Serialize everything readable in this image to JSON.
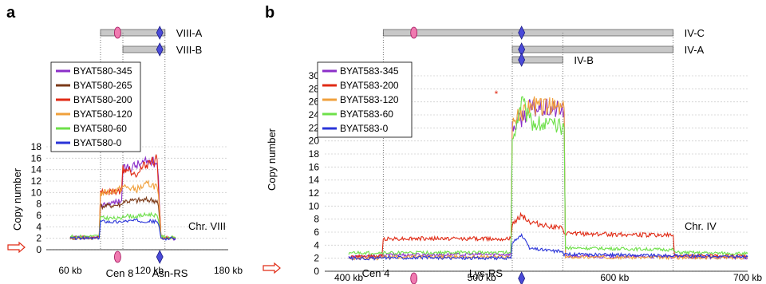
{
  "chart_data": [
    {
      "panel_label": "a",
      "type": "line",
      "ylabel": "Copy number",
      "ylim": [
        0,
        18
      ],
      "yticks": [
        "0",
        "2",
        "4",
        "6",
        "8",
        "10",
        "12",
        "14",
        "16",
        "18"
      ],
      "xlim": [
        60,
        180
      ],
      "xticks": [
        "60 kb",
        "120 kb",
        "180 kb"
      ],
      "chromosome_label": "Chr. VIII",
      "marker_labels": [
        {
          "text": "Cen 8",
          "color": "#d6187c"
        },
        {
          "text": "Asn-RS",
          "color": "#2a2ad4"
        }
      ],
      "bars": [
        {
          "label": "VIII-A",
          "start": 83,
          "end": 132
        },
        {
          "label": "VIII-B",
          "start": 100,
          "end": 132
        }
      ],
      "centromere_kb": 96,
      "gene_kb": 128,
      "series": [
        {
          "name": "BYAT580-345",
          "color": "#8b2fc9",
          "values": [
            [
              60,
              2.2
            ],
            [
              82,
              2.1
            ],
            [
              83,
              7.8
            ],
            [
              99,
              8.6
            ],
            [
              100,
              14.0
            ],
            [
              110,
              14.8
            ],
            [
              120,
              15.5
            ],
            [
              126,
              15.2
            ],
            [
              127,
              12.0
            ],
            [
              129,
              2.1
            ],
            [
              140,
              1.9
            ]
          ]
        },
        {
          "name": "BYAT580-265",
          "color": "#7b3a18",
          "values": [
            [
              60,
              2.0
            ],
            [
              82,
              2.1
            ],
            [
              83,
              7.6
            ],
            [
              99,
              7.9
            ],
            [
              100,
              8.5
            ],
            [
              110,
              8.6
            ],
            [
              120,
              8.7
            ],
            [
              126,
              8.6
            ],
            [
              127,
              7.5
            ],
            [
              129,
              2.0
            ],
            [
              140,
              2.0
            ]
          ]
        },
        {
          "name": "BYAT580-200",
          "color": "#e02a14",
          "values": [
            [
              60,
              2.2
            ],
            [
              82,
              2.2
            ],
            [
              83,
              10.0
            ],
            [
              99,
              10.3
            ],
            [
              100,
              14.2
            ],
            [
              110,
              13.5
            ],
            [
              120,
              15.3
            ],
            [
              126,
              15.8
            ],
            [
              127,
              11.0
            ],
            [
              129,
              2.2
            ],
            [
              140,
              2.0
            ]
          ]
        },
        {
          "name": "BYAT580-120",
          "color": "#f0a03c",
          "values": [
            [
              60,
              2.1
            ],
            [
              82,
              2.2
            ],
            [
              83,
              9.8
            ],
            [
              99,
              10.6
            ],
            [
              100,
              11.0
            ],
            [
              110,
              10.5
            ],
            [
              120,
              11.5
            ],
            [
              126,
              11.0
            ],
            [
              127,
              9.0
            ],
            [
              129,
              2.1
            ],
            [
              140,
              2.0
            ]
          ]
        },
        {
          "name": "BYAT580-60",
          "color": "#6ee04a",
          "values": [
            [
              60,
              2.3
            ],
            [
              82,
              2.4
            ],
            [
              83,
              5.6
            ],
            [
              99,
              5.4
            ],
            [
              100,
              6.0
            ],
            [
              110,
              5.8
            ],
            [
              120,
              6.2
            ],
            [
              126,
              6.0
            ],
            [
              127,
              5.0
            ],
            [
              129,
              2.3
            ],
            [
              140,
              2.1
            ]
          ]
        },
        {
          "name": "BYAT580-0",
          "color": "#2a34d8",
          "values": [
            [
              60,
              2.0
            ],
            [
              82,
              2.0
            ],
            [
              83,
              5.0
            ],
            [
              99,
              4.8
            ],
            [
              100,
              5.0
            ],
            [
              110,
              5.1
            ],
            [
              120,
              5.0
            ],
            [
              126,
              4.9
            ],
            [
              127,
              4.5
            ],
            [
              129,
              1.9
            ],
            [
              140,
              2.0
            ]
          ]
        }
      ]
    },
    {
      "panel_label": "b",
      "type": "line",
      "ylabel": "Copy number",
      "ylim": [
        0,
        30
      ],
      "yticks": [
        "0",
        "2",
        "4",
        "6",
        "8",
        "10",
        "12",
        "14",
        "16",
        "18",
        "20",
        "22",
        "24",
        "26",
        "28",
        "30"
      ],
      "xlim": [
        400,
        700
      ],
      "xticks": [
        "400 kb",
        "500 kb",
        "600 kb",
        "700 kb"
      ],
      "chromosome_label": "Chr. IV",
      "marker_labels": [
        {
          "text": "Cen 4",
          "color": "#d6187c"
        },
        {
          "text": "Lys-RS",
          "color": "#2a2ad4"
        }
      ],
      "bars": [
        {
          "label": "IV-C",
          "start": 426,
          "end": 644
        },
        {
          "label": "IV-A",
          "start": 523,
          "end": 644
        },
        {
          "label": "IV-B",
          "start": 523,
          "end": 561
        }
      ],
      "centromere_kb": 449,
      "gene_kb": 530,
      "annotation": "*",
      "series": [
        {
          "name": "BYAT583-345",
          "color": "#8b2fc9",
          "values": [
            [
              400,
              2.2
            ],
            [
              425,
              2.3
            ],
            [
              426,
              2.5
            ],
            [
              522,
              2.6
            ],
            [
              523,
              22.0
            ],
            [
              530,
              23.5
            ],
            [
              536,
              25.0
            ],
            [
              562,
              24.8
            ],
            [
              563,
              2.3
            ],
            [
              644,
              2.2
            ],
            [
              700,
              2.1
            ]
          ]
        },
        {
          "name": "BYAT583-200",
          "color": "#e02a14",
          "values": [
            [
              400,
              2.2
            ],
            [
              425,
              2.3
            ],
            [
              426,
              5.0
            ],
            [
              522,
              5.0
            ],
            [
              523,
              7.0
            ],
            [
              530,
              8.8
            ],
            [
              536,
              7.5
            ],
            [
              561,
              6.5
            ],
            [
              562,
              5.8
            ],
            [
              644,
              5.5
            ],
            [
              645,
              2.4
            ],
            [
              700,
              2.3
            ]
          ]
        },
        {
          "name": "BYAT583-120",
          "color": "#f0a03c",
          "values": [
            [
              400,
              2.0
            ],
            [
              425,
              2.0
            ],
            [
              426,
              2.2
            ],
            [
              522,
              2.2
            ],
            [
              523,
              23.0
            ],
            [
              530,
              24.0
            ],
            [
              536,
              25.5
            ],
            [
              562,
              25.0
            ],
            [
              563,
              2.2
            ],
            [
              644,
              2.1
            ],
            [
              700,
              2.1
            ]
          ]
        },
        {
          "name": "BYAT583-60",
          "color": "#6ee04a",
          "values": [
            [
              400,
              2.8
            ],
            [
              425,
              2.8
            ],
            [
              426,
              2.8
            ],
            [
              522,
              2.9
            ],
            [
              523,
              20.0
            ],
            [
              530,
              26.5
            ],
            [
              536,
              23.0
            ],
            [
              562,
              22.0
            ],
            [
              563,
              3.6
            ],
            [
              644,
              3.3
            ],
            [
              645,
              2.9
            ],
            [
              700,
              2.7
            ]
          ]
        },
        {
          "name": "BYAT583-0",
          "color": "#2a34d8",
          "values": [
            [
              400,
              2.0
            ],
            [
              425,
              2.0
            ],
            [
              426,
              2.1
            ],
            [
              522,
              2.0
            ],
            [
              523,
              4.5
            ],
            [
              530,
              5.5
            ],
            [
              536,
              3.5
            ],
            [
              561,
              3.0
            ],
            [
              562,
              2.6
            ],
            [
              644,
              2.4
            ],
            [
              700,
              2.2
            ]
          ]
        }
      ]
    }
  ]
}
